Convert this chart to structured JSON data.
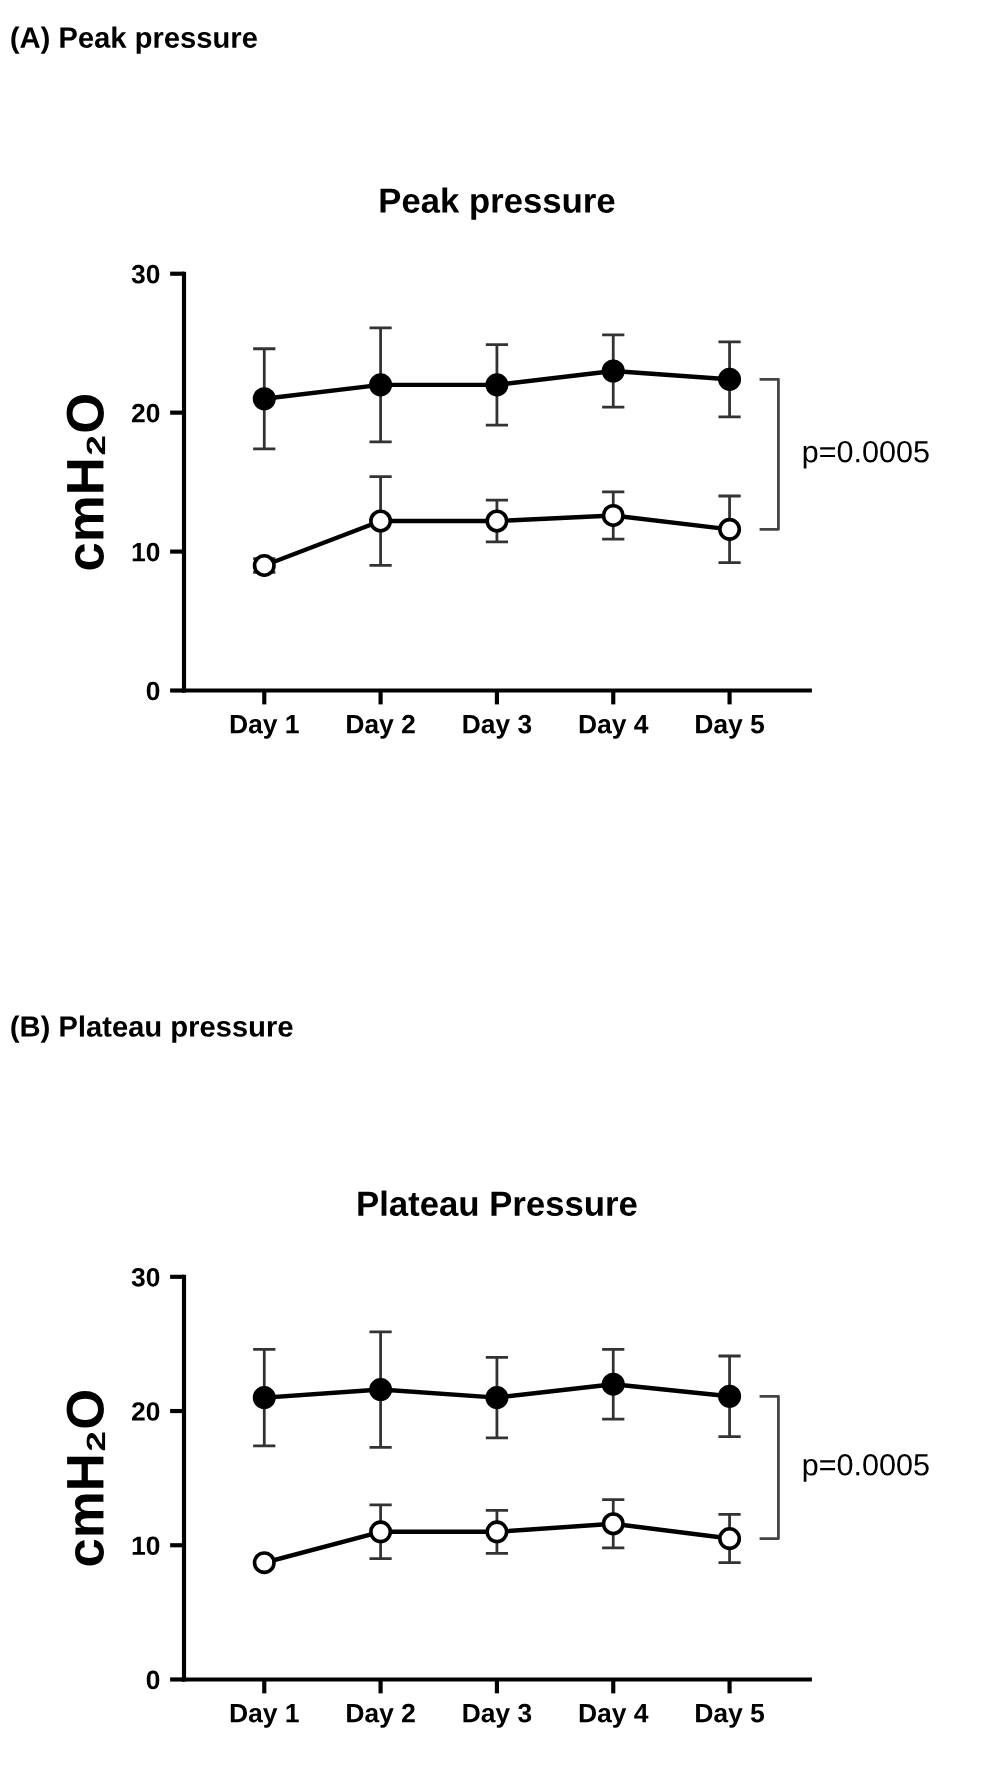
{
  "chart_data": [
    {
      "type": "line",
      "subtitle": "(A) Peak pressure",
      "title": "Peak pressure",
      "ylabel": "cmH₂O",
      "categories": [
        "Day 1",
        "Day 2",
        "Day 3",
        "Day 4",
        "Day 5"
      ],
      "ylim": [
        0,
        30
      ],
      "yticks": [
        0,
        10,
        20,
        30
      ],
      "marker": "circle",
      "grid": false,
      "legend": false,
      "annotations": [
        "p=0.0005"
      ],
      "series": [
        {
          "color": "#000000",
          "values": [
            21.0,
            22.0,
            22.0,
            23.0,
            22.4
          ],
          "errors": [
            3.6,
            4.1,
            2.9,
            2.6,
            2.7
          ]
        },
        {
          "color": "#ffffff",
          "values": [
            9.0,
            12.2,
            12.2,
            12.6,
            11.6
          ],
          "errors": [
            0.5,
            3.2,
            1.5,
            1.7,
            2.4
          ]
        }
      ]
    },
    {
      "type": "line",
      "subtitle": "(B) Plateau pressure",
      "title": "Plateau Pressure",
      "ylabel": "cmH₂O",
      "categories": [
        "Day 1",
        "Day 2",
        "Day 3",
        "Day 4",
        "Day 5"
      ],
      "ylim": [
        0,
        30
      ],
      "yticks": [
        0,
        10,
        20,
        30
      ],
      "marker": "circle",
      "grid": false,
      "legend": false,
      "annotations": [
        "p=0.0005"
      ],
      "series": [
        {
          "color": "#000000",
          "values": [
            21.0,
            21.6,
            21.0,
            22.0,
            21.1
          ],
          "errors": [
            3.6,
            4.3,
            3.0,
            2.6,
            3.0
          ]
        },
        {
          "color": "#ffffff",
          "values": [
            8.7,
            11.0,
            11.0,
            11.6,
            10.5
          ],
          "errors": [
            null,
            2.0,
            1.6,
            1.8,
            1.8
          ]
        }
      ]
    }
  ]
}
